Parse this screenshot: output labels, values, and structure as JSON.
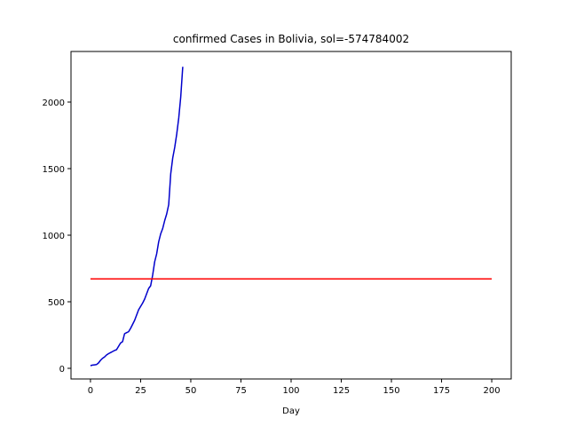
{
  "chart_data": {
    "type": "line",
    "title": "confirmed Cases in Bolivia, sol=-574784002",
    "xlabel": "Day",
    "ylabel": "",
    "xlim": [
      -9.7,
      209.7
    ],
    "ylim": [
      -80,
      2380
    ],
    "xticks": [
      0,
      25,
      50,
      75,
      100,
      125,
      150,
      175,
      200
    ],
    "yticks": [
      0,
      500,
      1000,
      1500,
      2000
    ],
    "grid": false,
    "series": [
      {
        "color": "#0000cc",
        "x": [
          0,
          1,
          2,
          3,
          4,
          5,
          6,
          7,
          8,
          9,
          10,
          11,
          12,
          13,
          14,
          15,
          16,
          17,
          18,
          19,
          20,
          21,
          22,
          23,
          24,
          25,
          26,
          27,
          28,
          29,
          30,
          31,
          32,
          33,
          34,
          35,
          36,
          37,
          38,
          39,
          40,
          41,
          42,
          43,
          44,
          45,
          46,
          47,
          48
        ],
        "y": [
          20,
          24,
          26,
          28,
          40,
          60,
          75,
          85,
          100,
          110,
          118,
          126,
          134,
          140,
          165,
          190,
          200,
          260,
          268,
          275,
          300,
          330,
          360,
          400,
          440,
          465,
          490,
          520,
          560,
          600,
          620,
          700,
          800,
          860,
          950,
          1010,
          1050,
          1110,
          1160,
          1230,
          1460,
          1580,
          1660,
          1760,
          1880,
          2040,
          2265,
          null,
          null
        ]
      },
      {
        "color": "#ff0000",
        "x": [
          0,
          200
        ],
        "y": [
          672,
          672
        ]
      }
    ]
  }
}
